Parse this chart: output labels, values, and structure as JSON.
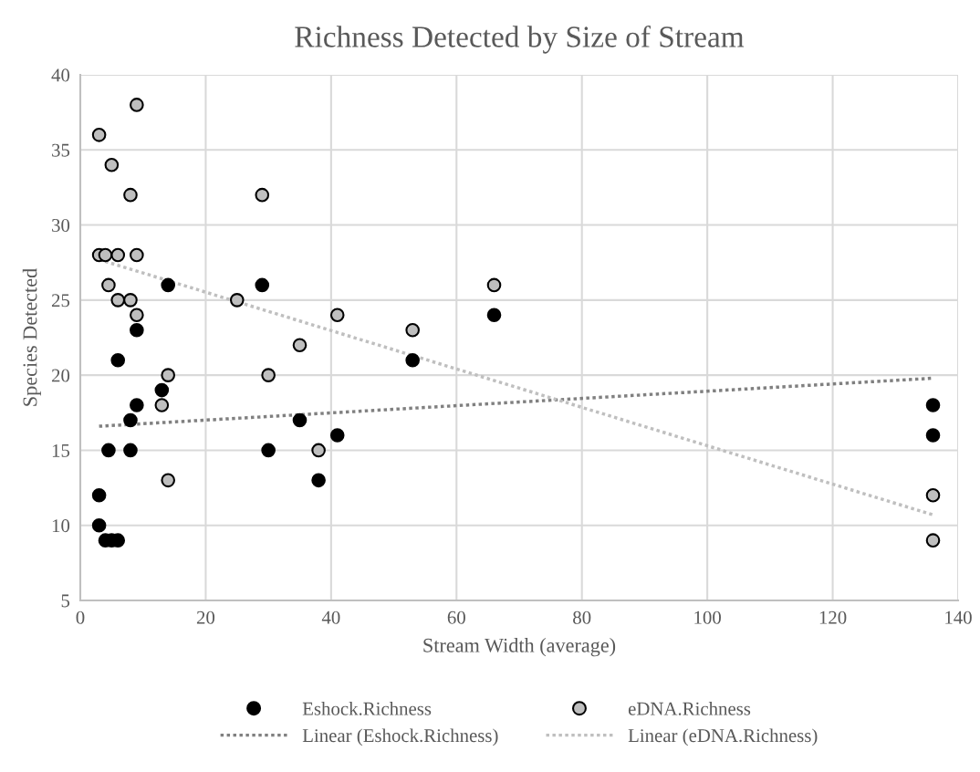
{
  "chart_data": {
    "type": "scatter",
    "title": "Richness Detected by Size of Stream",
    "xlabel": "Stream Width (average)",
    "ylabel": "Species Detected",
    "xlim": [
      0,
      140
    ],
    "xticks": [
      0,
      20,
      40,
      60,
      80,
      100,
      120,
      140
    ],
    "ylim": [
      5,
      40
    ],
    "yticks": [
      5,
      10,
      15,
      20,
      25,
      30,
      35,
      40
    ],
    "grid": true,
    "legend": "bottom",
    "marker": "circle",
    "series": [
      {
        "name": "Eshock.Richness",
        "color": "#000000",
        "x": [
          3,
          3,
          4,
          5,
          6,
          6,
          4.5,
          8,
          8,
          9,
          9,
          13,
          14,
          29,
          30,
          35,
          38,
          41,
          53,
          66,
          136,
          136
        ],
        "values": [
          12,
          10,
          9,
          9,
          9,
          21,
          15,
          17,
          15,
          23,
          18,
          19,
          26,
          26,
          15,
          17,
          13,
          16,
          21,
          24,
          18,
          16
        ]
      },
      {
        "name": "eDNA.Richness",
        "color": "#bfbfbf",
        "x": [
          3,
          3,
          4,
          5,
          4.5,
          6,
          6,
          8,
          8,
          9,
          9,
          9,
          14,
          13,
          14,
          25,
          29,
          30,
          35,
          38,
          41,
          53,
          66,
          136,
          136
        ],
        "values": [
          36,
          28,
          28,
          34,
          26,
          28,
          25,
          32,
          25,
          38,
          28,
          24,
          20,
          18,
          13,
          25,
          32,
          20,
          22,
          15,
          24,
          23,
          26,
          12,
          9
        ]
      },
      {
        "name": "Linear (Eshock.Richness)",
        "type": "line",
        "line_style": "dotted",
        "marker": "none",
        "color": "#808080",
        "x": [
          3,
          136
        ],
        "values": [
          16.6,
          19.8
        ]
      },
      {
        "name": "Linear (eDNA.Richness)",
        "type": "line",
        "line_style": "dotted",
        "marker": "none",
        "color": "#bfbfbf",
        "x": [
          3,
          136
        ],
        "values": [
          27.7,
          10.7
        ]
      }
    ]
  }
}
